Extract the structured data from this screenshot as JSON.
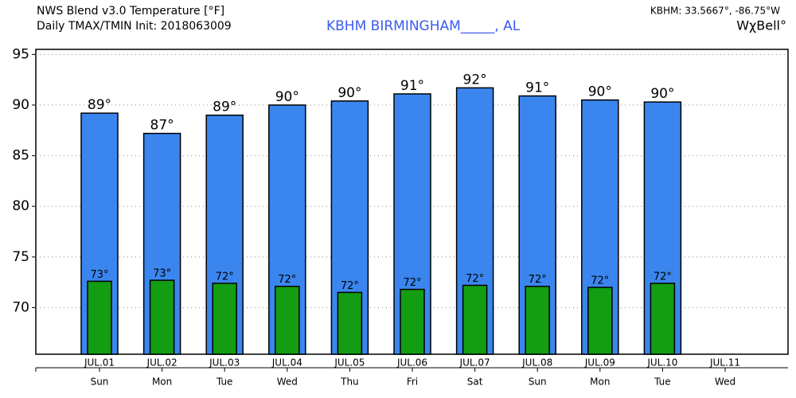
{
  "chart_data": {
    "type": "bar",
    "title": "NWS Blend v3.0 Temperature [°F]",
    "subtitle": "Daily TMAX/TMIN Init: 2018063009",
    "location": "KBHM BIRMINGHAM_____, AL",
    "coordinates": "KBHM: 33.5667°, -86.75°W",
    "logo": "WχBell°",
    "categories": [
      "JUL.01",
      "JUL.02",
      "JUL.03",
      "JUL.04",
      "JUL.05",
      "JUL.06",
      "JUL.07",
      "JUL.08",
      "JUL.09",
      "JUL.10",
      "JUL.11"
    ],
    "weekdays": [
      "Sun",
      "Mon",
      "Tue",
      "Wed",
      "Thu",
      "Fri",
      "Sat",
      "Sun",
      "Mon",
      "Tue",
      "Wed"
    ],
    "series": [
      {
        "color": "#3a86ee",
        "values": [
          89.2,
          87.2,
          89.0,
          90.0,
          90.4,
          91.1,
          91.7,
          90.9,
          90.5,
          90.3,
          null
        ],
        "value_labels": [
          "89°",
          "87°",
          "89°",
          "90°",
          "90°",
          "91°",
          "92°",
          "91°",
          "90°",
          "90°",
          null
        ]
      },
      {
        "color": "#129d12",
        "values": [
          72.6,
          72.7,
          72.4,
          72.1,
          71.5,
          71.8,
          72.2,
          72.1,
          72.0,
          72.4,
          null
        ],
        "value_labels": [
          "73°",
          "73°",
          "72°",
          "72°",
          "72°",
          "72°",
          "72°",
          "72°",
          "72°",
          "72°",
          null
        ]
      }
    ],
    "ylim": [
      65.4,
      95.5
    ],
    "yticks": [
      70,
      75,
      80,
      85,
      90,
      95
    ],
    "grid": true
  }
}
